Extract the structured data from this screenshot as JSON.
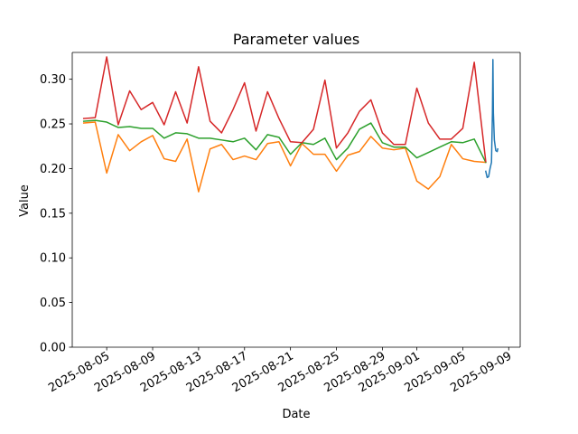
{
  "chart_data": {
    "type": "line",
    "title": "Parameter values",
    "xlabel": "Date",
    "ylabel": "Value",
    "xlim": [
      "2025-08-02",
      "2025-09-10"
    ],
    "ylim": [
      0,
      0.33
    ],
    "x_ticks": [
      "2025-08-05",
      "2025-08-09",
      "2025-08-13",
      "2025-08-17",
      "2025-08-21",
      "2025-08-25",
      "2025-08-29",
      "2025-09-01",
      "2025-09-05",
      "2025-09-09"
    ],
    "y_ticks": [
      "0.00",
      "0.05",
      "0.10",
      "0.15",
      "0.20",
      "0.25",
      "0.30"
    ],
    "grid": false,
    "x": [
      "2025-08-03",
      "2025-08-04",
      "2025-08-05",
      "2025-08-06",
      "2025-08-07",
      "2025-08-08",
      "2025-08-09",
      "2025-08-10",
      "2025-08-11",
      "2025-08-12",
      "2025-08-13",
      "2025-08-14",
      "2025-08-15",
      "2025-08-16",
      "2025-08-17",
      "2025-08-18",
      "2025-08-19",
      "2025-08-20",
      "2025-08-21",
      "2025-08-22",
      "2025-08-23",
      "2025-08-24",
      "2025-08-25",
      "2025-08-26",
      "2025-08-27",
      "2025-08-28",
      "2025-08-29",
      "2025-08-30",
      "2025-08-31",
      "2025-09-01",
      "2025-09-02",
      "2025-09-03",
      "2025-09-04",
      "2025-09-05",
      "2025-09-06",
      "2025-09-07"
    ],
    "series": [
      {
        "color": "#1f77b4",
        "points": [
          [
            "2025-09-07T00:00",
            0.197
          ],
          [
            "2025-09-07T03:00",
            0.19
          ],
          [
            "2025-09-07T06:00",
            0.191
          ],
          [
            "2025-09-07T09:00",
            0.2
          ],
          [
            "2025-09-07T12:00",
            0.207
          ],
          [
            "2025-09-07T14:00",
            0.262
          ],
          [
            "2025-09-07T15:00",
            0.322
          ],
          [
            "2025-09-07T16:00",
            0.262
          ],
          [
            "2025-09-07T18:00",
            0.232
          ],
          [
            "2025-09-07T21:00",
            0.22
          ],
          [
            "2025-09-08T00:00",
            0.219
          ],
          [
            "2025-09-08T01:00",
            0.222
          ]
        ]
      },
      {
        "color": "#ff7f0e",
        "values": [
          0.251,
          0.252,
          0.195,
          0.238,
          0.22,
          0.23,
          0.237,
          0.211,
          0.208,
          0.233,
          0.174,
          0.222,
          0.227,
          0.21,
          0.214,
          0.21,
          0.228,
          0.23,
          0.203,
          0.228,
          0.216,
          0.216,
          0.197,
          0.215,
          0.219,
          0.236,
          0.223,
          0.221,
          0.223,
          0.186,
          0.177,
          0.191,
          0.227,
          0.211,
          0.208,
          0.207
        ]
      },
      {
        "color": "#2ca02c",
        "values": [
          0.253,
          0.254,
          0.252,
          0.246,
          0.247,
          0.245,
          0.245,
          0.234,
          0.24,
          0.239,
          0.234,
          0.234,
          0.232,
          0.23,
          0.234,
          0.221,
          0.238,
          0.235,
          0.216,
          0.229,
          0.227,
          0.234,
          0.21,
          0.223,
          0.244,
          0.251,
          0.229,
          0.224,
          0.224,
          0.212,
          0.218,
          0.224,
          0.23,
          0.229,
          0.233,
          0.207
        ]
      },
      {
        "color": "#d62728",
        "values": [
          0.256,
          0.257,
          0.325,
          0.249,
          0.287,
          0.266,
          0.274,
          0.249,
          0.286,
          0.251,
          0.314,
          0.253,
          0.24,
          0.266,
          0.296,
          0.242,
          0.286,
          0.256,
          0.23,
          0.229,
          0.244,
          0.299,
          0.223,
          0.24,
          0.264,
          0.277,
          0.24,
          0.227,
          0.227,
          0.29,
          0.251,
          0.233,
          0.233,
          0.245,
          0.319,
          0.208
        ]
      }
    ]
  }
}
